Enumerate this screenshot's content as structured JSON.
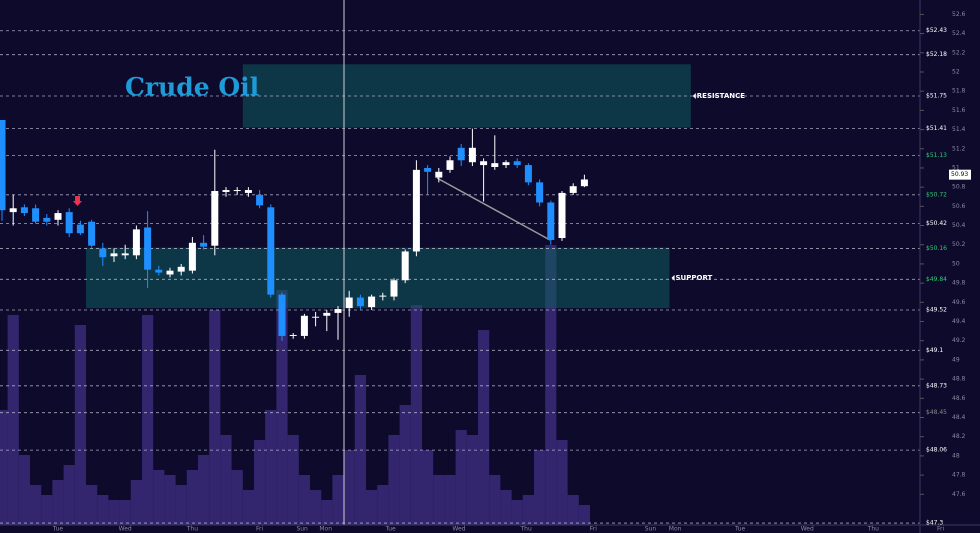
{
  "chart_data": {
    "type": "candlestick",
    "title": "Crude Oil",
    "ylim": [
      47.28,
      52.75
    ],
    "yticks": [
      47.6,
      47.8,
      48,
      48.2,
      48.4,
      48.6,
      48.8,
      49,
      49.2,
      49.4,
      49.6,
      49.8,
      50,
      50.2,
      50.4,
      50.6,
      50.8,
      51,
      51.2,
      51.4,
      51.6,
      51.8,
      52,
      52.2,
      52.4,
      52.6
    ],
    "up_color": "#ffffff",
    "down_color": "#1f8fff",
    "volume_color": "#33266e",
    "open": [
      51.5,
      50.54,
      50.59,
      50.58,
      50.48,
      50.46,
      50.54,
      50.41,
      50.44,
      50.16,
      50.08,
      50.09,
      50.09,
      50.38,
      49.94,
      49.89,
      49.92,
      49.93,
      50.22,
      50.19,
      50.75,
      50.76,
      50.74,
      50.72,
      50.59,
      49.68,
      49.25,
      49.25,
      49.44,
      49.46,
      49.49,
      49.54,
      49.65,
      49.55,
      49.66,
      49.66,
      49.83,
      50.13,
      51.0,
      50.9,
      50.98,
      51.21,
      51.06,
      51.03,
      51.01,
      51.03,
      51.07,
      51.03,
      50.85,
      50.64,
      50.27,
      50.74,
      50.81
    ],
    "high": [
      51.5,
      50.72,
      50.62,
      50.62,
      50.52,
      50.56,
      50.58,
      50.45,
      50.46,
      50.22,
      50.16,
      50.2,
      50.4,
      50.55,
      49.98,
      49.96,
      50.0,
      50.28,
      50.3,
      51.19,
      50.8,
      50.8,
      50.8,
      50.77,
      50.62,
      49.7,
      49.28,
      49.48,
      49.5,
      49.52,
      49.56,
      49.72,
      49.68,
      49.68,
      49.7,
      49.85,
      50.15,
      51.08,
      51.03,
      51.0,
      51.12,
      51.25,
      51.41,
      51.1,
      51.34,
      51.08,
      51.1,
      51.05,
      50.88,
      50.66,
      50.76,
      50.84,
      50.93
    ],
    "low": [
      50.45,
      50.4,
      50.5,
      50.42,
      50.4,
      50.4,
      50.28,
      50.3,
      50.17,
      49.98,
      50.02,
      50.05,
      50.05,
      49.75,
      49.88,
      49.86,
      49.88,
      49.9,
      50.15,
      50.09,
      50.7,
      50.72,
      50.7,
      50.58,
      49.65,
      49.2,
      49.22,
      49.22,
      49.35,
      49.3,
      49.21,
      49.45,
      49.52,
      49.52,
      49.62,
      49.62,
      49.8,
      50.08,
      50.72,
      50.85,
      50.95,
      51.02,
      51.02,
      50.65,
      50.98,
      51.0,
      51.0,
      50.82,
      50.6,
      50.2,
      50.24,
      50.72,
      50.8
    ],
    "close": [
      50.56,
      50.58,
      50.53,
      50.44,
      50.44,
      50.53,
      50.32,
      50.32,
      50.19,
      50.07,
      50.11,
      50.11,
      50.36,
      49.94,
      49.91,
      49.93,
      49.97,
      50.22,
      50.18,
      50.76,
      50.77,
      50.77,
      50.77,
      50.61,
      49.68,
      49.25,
      49.26,
      49.46,
      49.45,
      49.49,
      49.53,
      49.65,
      49.56,
      49.66,
      49.67,
      49.83,
      50.13,
      50.98,
      50.96,
      50.96,
      51.08,
      51.08,
      51.21,
      51.07,
      51.05,
      51.06,
      51.03,
      50.85,
      50.64,
      50.25,
      50.74,
      50.81,
      50.88
    ],
    "volume": [
      115,
      210,
      70,
      40,
      30,
      45,
      60,
      200,
      40,
      30,
      25,
      25,
      45,
      210,
      55,
      50,
      40,
      55,
      70,
      215,
      90,
      55,
      35,
      85,
      115,
      235,
      90,
      50,
      35,
      25,
      50,
      75,
      150,
      35,
      40,
      90,
      120,
      220,
      75,
      50,
      50,
      95,
      90,
      195,
      50,
      35,
      25,
      30,
      75,
      280,
      85,
      30,
      20
    ],
    "last_price": 50.93,
    "levels": [
      {
        "value": 52.43,
        "label": "$52.43",
        "color": "#ffffff"
      },
      {
        "value": 52.18,
        "label": "$52.18",
        "color": "#ffffff"
      },
      {
        "value": 51.75,
        "label": "$51.75",
        "color": "#ffffff"
      },
      {
        "value": 51.41,
        "label": "$51.41",
        "color": "#ffffff"
      },
      {
        "value": 51.13,
        "label": "$51.13",
        "color": "#2ecc71"
      },
      {
        "value": 50.72,
        "label": "$50.72",
        "color": "#2ecc71"
      },
      {
        "value": 50.42,
        "label": "$50.42",
        "color": "#ffffff"
      },
      {
        "value": 50.16,
        "label": "$50.16",
        "color": "#2ecc71"
      },
      {
        "value": 49.84,
        "label": "$49.84",
        "color": "#2ecc71"
      },
      {
        "value": 49.52,
        "label": "$49.52",
        "color": "#ffffff"
      },
      {
        "value": 49.1,
        "label": "$49.1",
        "color": "#ffffff"
      },
      {
        "value": 48.73,
        "label": "$48.73",
        "color": "#ffffff"
      },
      {
        "value": 48.45,
        "label": "$48.45",
        "color": "#888888"
      },
      {
        "value": 48.06,
        "label": "$48.06",
        "color": "#ffffff"
      },
      {
        "value": 47.3,
        "label": "$47.3",
        "color": "#ffffff"
      }
    ],
    "zones": [
      {
        "label": "RESISTANCE",
        "from": 51.42,
        "to": 52.08,
        "start": 21.5,
        "end": 61.5
      },
      {
        "label": "SUPPORT",
        "from": 49.54,
        "to": 50.17,
        "start": 7.5,
        "end": 59.6
      }
    ],
    "x_labels": [
      {
        "slot": 5,
        "label": "Tue"
      },
      {
        "slot": 11,
        "label": "Wed"
      },
      {
        "slot": 17,
        "label": "Thu"
      },
      {
        "slot": 23,
        "label": "Fri"
      },
      {
        "slot": 26.8,
        "label": "Sun"
      },
      {
        "slot": 28.9,
        "label": "Mon"
      },
      {
        "slot": 34.7,
        "label": "Tue"
      },
      {
        "slot": 40.8,
        "label": "Wed"
      },
      {
        "slot": 46.8,
        "label": "Thu"
      },
      {
        "slot": 52.8,
        "label": "Fri"
      },
      {
        "slot": 57.9,
        "label": "Sun"
      },
      {
        "slot": 60.1,
        "label": "Mon"
      },
      {
        "slot": 65.9,
        "label": "Tue"
      },
      {
        "slot": 71.9,
        "label": "Wed"
      },
      {
        "slot": 77.8,
        "label": "Thu"
      },
      {
        "slot": 83.8,
        "label": "Fri"
      }
    ]
  }
}
